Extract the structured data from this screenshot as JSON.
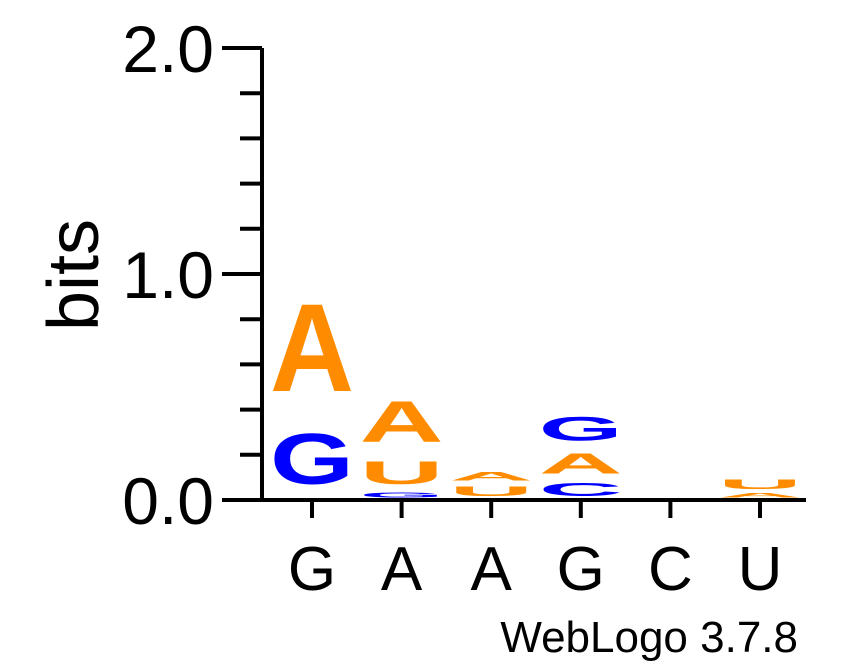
{
  "chart_data": {
    "type": "sequence-logo",
    "ylabel": "bits",
    "ylim": [
      0,
      2.0
    ],
    "y_ticks": [
      "0.0",
      "1.0",
      "2.0"
    ],
    "positions": [
      "G",
      "A",
      "A",
      "G",
      "C",
      "U"
    ],
    "colors": {
      "A": "#ff8c00",
      "U": "#ff8c00",
      "G": "#0000ff",
      "C": "#0000ff"
    },
    "stacks": [
      {
        "letters": [
          {
            "letter": "G",
            "bits": 0.36
          },
          {
            "letter": "A",
            "bits": 0.62
          }
        ]
      },
      {
        "letters": [
          {
            "letter": "C",
            "bits": 0.005
          },
          {
            "letter": "G",
            "bits": 0.035
          },
          {
            "letter": "U",
            "bits": 0.16
          },
          {
            "letter": "A",
            "bits": 0.29
          }
        ]
      },
      {
        "letters": [
          {
            "letter": "G",
            "bits": 0.005
          },
          {
            "letter": "U",
            "bits": 0.07
          },
          {
            "letter": "A",
            "bits": 0.06
          }
        ]
      },
      {
        "letters": [
          {
            "letter": "C",
            "bits": 0.09
          },
          {
            "letter": "A",
            "bits": 0.14
          },
          {
            "letter": "G",
            "bits": 0.17
          }
        ]
      },
      {
        "letters": [
          {
            "letter": "U",
            "bits": 0.008
          }
        ]
      },
      {
        "letters": [
          {
            "letter": "G",
            "bits": 0.006
          },
          {
            "letter": "A",
            "bits": 0.03
          },
          {
            "letter": "U",
            "bits": 0.07
          }
        ]
      }
    ],
    "credit": "WebLogo 3.7.8"
  }
}
